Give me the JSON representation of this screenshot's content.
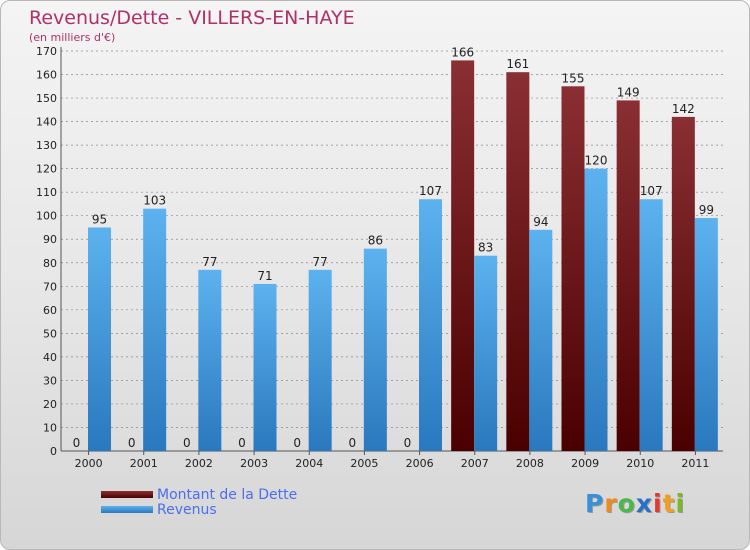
{
  "colors": {
    "dette_top": "#8a2f33",
    "dette_bottom": "#4a0000",
    "revenus_top": "#5cb2ee",
    "revenus_bottom": "#2a78be",
    "axis_text": "#222222",
    "grid": "#8a8a8a"
  },
  "chart_data": {
    "type": "bar",
    "title": "Revenus/Dette - VILLERS-EN-HAYE",
    "subtitle": "(en milliers d'€)",
    "categories": [
      "2000",
      "2001",
      "2002",
      "2003",
      "2004",
      "2005",
      "2006",
      "2007",
      "2008",
      "2009",
      "2010",
      "2011"
    ],
    "series": [
      {
        "name": "Montant de la Dette",
        "values": [
          0,
          0,
          0,
          0,
          0,
          0,
          0,
          166,
          161,
          155,
          149,
          142
        ]
      },
      {
        "name": "Revenus",
        "values": [
          95,
          103,
          77,
          71,
          77,
          86,
          107,
          83,
          94,
          120,
          107,
          99
        ]
      }
    ],
    "ylim": [
      0,
      170
    ],
    "yticks": [
      0,
      10,
      20,
      30,
      40,
      50,
      60,
      70,
      80,
      90,
      100,
      110,
      120,
      130,
      140,
      150,
      160,
      170
    ],
    "grid": "dashed horizontal",
    "legend_position": "bottom-left"
  },
  "legend": {
    "dette_label": "Montant de la Dette",
    "revenus_label": "Revenus"
  },
  "logo": {
    "letters": [
      "P",
      "r",
      "o",
      "x",
      "i",
      "t",
      "i"
    ],
    "colors": [
      "#3a8fd8",
      "#f08a1c",
      "#4cb84c",
      "#2a70c8",
      "#e03a30",
      "#f0a020",
      "#7ab828"
    ]
  }
}
